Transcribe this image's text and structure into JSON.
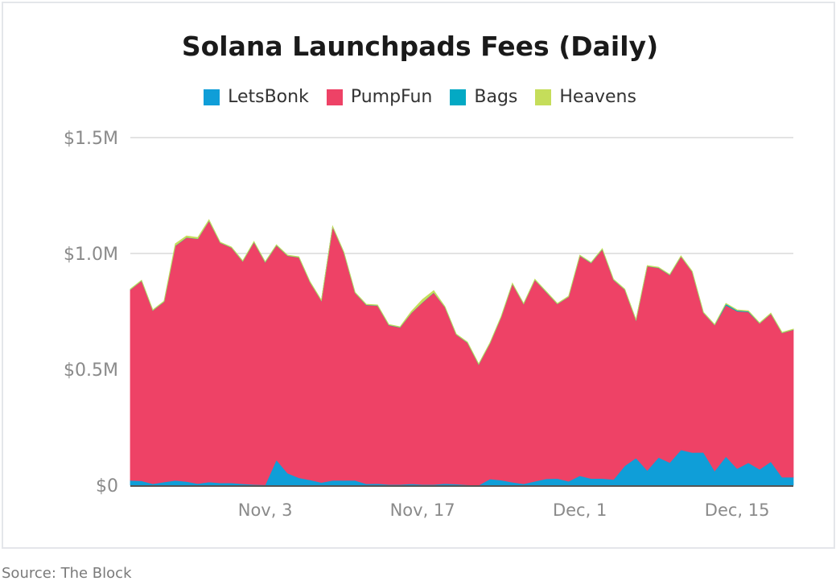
{
  "chart_data": {
    "type": "area",
    "stacked": true,
    "title": "Solana Launchpads Fees (Daily)",
    "source": "Source: The Block",
    "legend_position": "top",
    "grid": true,
    "unit": "$M",
    "ylim": [
      0,
      1.5
    ],
    "y_ticks": [
      {
        "value": 0,
        "label": "$0"
      },
      {
        "value": 0.5,
        "label": "$0.5M"
      },
      {
        "value": 1.0,
        "label": "$1.0M"
      },
      {
        "value": 1.5,
        "label": "$1.5M"
      }
    ],
    "x_ticks": [
      {
        "index": 12,
        "label": "Nov, 3"
      },
      {
        "index": 26,
        "label": "Nov, 17"
      },
      {
        "index": 40,
        "label": "Dec, 1"
      },
      {
        "index": 54,
        "label": "Dec, 15"
      }
    ],
    "series": [
      {
        "name": "LetsBonk",
        "color": "#0f9ed8",
        "values": [
          0.021,
          0.019,
          0.006,
          0.014,
          0.021,
          0.016,
          0.007,
          0.014,
          0.01,
          0.01,
          0.006,
          0.003,
          0.002,
          0.11,
          0.052,
          0.032,
          0.023,
          0.012,
          0.021,
          0.021,
          0.021,
          0.006,
          0.007,
          0.003,
          0.003,
          0.006,
          0.003,
          0.003,
          0.007,
          0.005,
          0.002,
          0.0,
          0.027,
          0.022,
          0.013,
          0.006,
          0.017,
          0.028,
          0.029,
          0.017,
          0.041,
          0.029,
          0.029,
          0.025,
          0.084,
          0.118,
          0.064,
          0.12,
          0.098,
          0.153,
          0.141,
          0.142,
          0.062,
          0.124,
          0.072,
          0.097,
          0.069,
          0.102,
          0.035,
          0.035
        ]
      },
      {
        "name": "PumpFun",
        "color": "#ee4266",
        "values": [
          0.823,
          0.863,
          0.748,
          0.778,
          1.012,
          1.053,
          1.056,
          1.127,
          1.036,
          1.015,
          0.96,
          1.046,
          0.96,
          0.925,
          0.938,
          0.951,
          0.852,
          0.784,
          1.094,
          0.983,
          0.809,
          0.772,
          0.768,
          0.688,
          0.678,
          0.737,
          0.786,
          0.828,
          0.761,
          0.645,
          0.613,
          0.521,
          0.585,
          0.704,
          0.856,
          0.776,
          0.869,
          0.806,
          0.753,
          0.796,
          0.949,
          0.93,
          0.989,
          0.861,
          0.76,
          0.594,
          0.881,
          0.818,
          0.809,
          0.834,
          0.78,
          0.602,
          0.629,
          0.653,
          0.679,
          0.651,
          0.629,
          0.638,
          0.622,
          0.636
        ]
      },
      {
        "name": "Bags",
        "color": "#03a9c4",
        "values": [
          0.001,
          0.001,
          0.001,
          0.001,
          0.001,
          0.001,
          0.001,
          0.001,
          0.001,
          0.001,
          0.001,
          0.001,
          0.001,
          0.001,
          0.001,
          0.001,
          0.001,
          0.001,
          0.001,
          0.001,
          0.001,
          0.001,
          0.001,
          0.001,
          0.001,
          0.001,
          0.001,
          0.001,
          0.001,
          0.001,
          0.001,
          0.001,
          0.001,
          0.001,
          0.001,
          0.001,
          0.001,
          0.001,
          0.001,
          0.001,
          0.001,
          0.001,
          0.001,
          0.001,
          0.001,
          0.001,
          0.001,
          0.001,
          0.001,
          0.001,
          0.001,
          0.001,
          0.001,
          0.006,
          0.004,
          0.003,
          0.001,
          0.001,
          0.001,
          0.001
        ]
      },
      {
        "name": "Heavens",
        "color": "#c5dd5a",
        "values": [
          0.002,
          0.002,
          0.002,
          0.002,
          0.008,
          0.006,
          0.005,
          0.004,
          0.002,
          0.002,
          0.002,
          0.002,
          0.002,
          0.002,
          0.002,
          0.002,
          0.002,
          0.002,
          0.002,
          0.002,
          0.002,
          0.002,
          0.002,
          0.002,
          0.002,
          0.006,
          0.012,
          0.008,
          0.002,
          0.002,
          0.002,
          0.002,
          0.002,
          0.002,
          0.002,
          0.002,
          0.002,
          0.002,
          0.002,
          0.002,
          0.002,
          0.002,
          0.002,
          0.002,
          0.002,
          0.002,
          0.002,
          0.002,
          0.002,
          0.002,
          0.002,
          0.002,
          0.002,
          0.002,
          0.002,
          0.002,
          0.002,
          0.002,
          0.002,
          0.002
        ]
      }
    ]
  }
}
